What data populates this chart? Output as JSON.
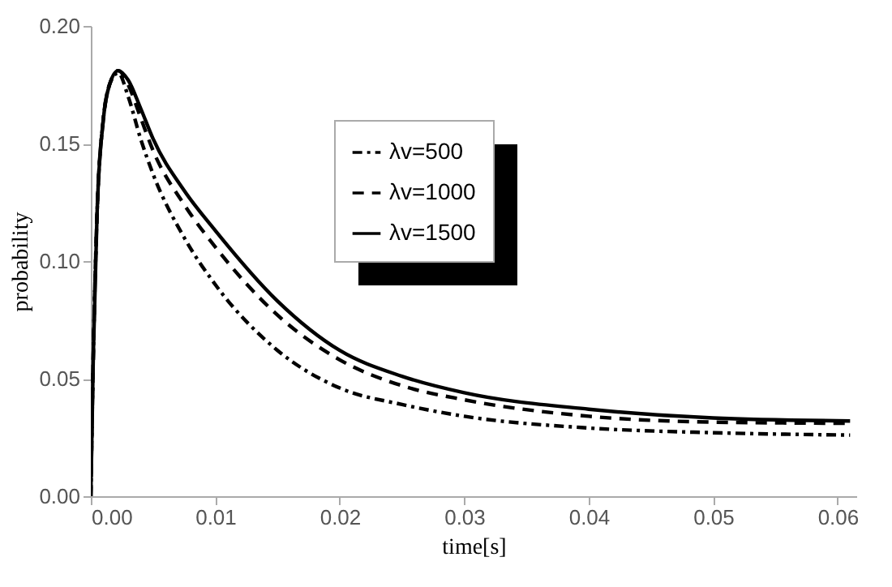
{
  "chart_data": {
    "type": "line",
    "xlabel": "time[s]",
    "ylabel": "probability",
    "xlim": [
      0,
      0.0615
    ],
    "ylim": [
      0,
      0.2
    ],
    "xticks": [
      {
        "value": 0,
        "label": "0.00"
      },
      {
        "value": 0.01,
        "label": "0.01"
      },
      {
        "value": 0.02,
        "label": "0.02"
      },
      {
        "value": 0.03,
        "label": "0.03"
      },
      {
        "value": 0.04,
        "label": "0.04"
      },
      {
        "value": 0.05,
        "label": "0.05"
      },
      {
        "value": 0.06,
        "label": "0.06"
      }
    ],
    "yticks": [
      {
        "value": 0,
        "label": "0.00"
      },
      {
        "value": 0.05,
        "label": "0.05"
      },
      {
        "value": 0.1,
        "label": "0.10"
      },
      {
        "value": 0.15,
        "label": "0.15"
      },
      {
        "value": 0.2,
        "label": "0.20"
      }
    ],
    "x": [
      0,
      0.0002,
      0.0005,
      0.001,
      0.0015,
      0.0022,
      0.003,
      0.004,
      0.005,
      0.0075,
      0.01,
      0.015,
      0.02,
      0.025,
      0.03,
      0.04,
      0.05,
      0.061
    ],
    "series": [
      {
        "name": "λv=500",
        "color": "#000000",
        "line_style": "dashdot",
        "values": [
          0,
          0.06,
          0.12,
          0.16,
          0.175,
          0.18,
          0.17,
          0.152,
          0.137,
          0.11,
          0.09,
          0.062,
          0.046,
          0.039,
          0.034,
          0.029,
          0.027,
          0.026
        ]
      },
      {
        "name": "λv=1000",
        "color": "#000000",
        "line_style": "dashed",
        "values": [
          0,
          0.06,
          0.12,
          0.16,
          0.175,
          0.181,
          0.175,
          0.161,
          0.147,
          0.124,
          0.106,
          0.077,
          0.058,
          0.047,
          0.041,
          0.034,
          0.0315,
          0.031
        ]
      },
      {
        "name": "λv=1500",
        "color": "#000000",
        "line_style": "solid",
        "values": [
          0,
          0.06,
          0.12,
          0.16,
          0.175,
          0.181,
          0.177,
          0.165,
          0.152,
          0.13,
          0.113,
          0.083,
          0.062,
          0.051,
          0.044,
          0.037,
          0.0333,
          0.032
        ]
      }
    ],
    "legend": "top",
    "grid": false
  }
}
